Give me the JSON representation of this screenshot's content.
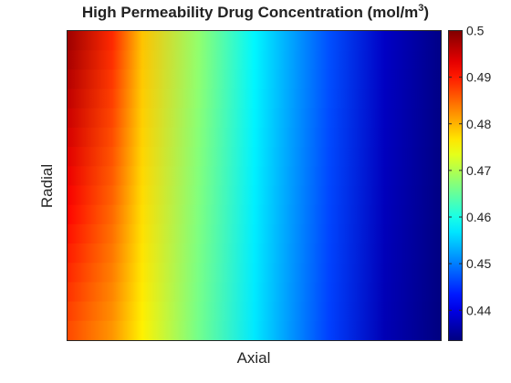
{
  "chart_data": {
    "type": "heatmap",
    "title": "High Permeability Drug Concentration (mol/m",
    "title_superscript": "3",
    "title_suffix": ")",
    "xlabel": "Axial",
    "ylabel": "Radial",
    "x_ticks": [],
    "y_ticks": [],
    "colormap": "jet",
    "clim": [
      0.4335,
      0.5
    ],
    "colorbar": {
      "ticks": [
        0.44,
        0.45,
        0.46,
        0.47,
        0.48,
        0.49,
        0.5
      ],
      "tick_labels": [
        "0.44",
        "0.45",
        "0.46",
        "0.47",
        "0.48",
        "0.49",
        "0.5"
      ]
    },
    "axial_profile": {
      "axial_fraction": [
        0.0,
        0.12,
        0.2,
        0.35,
        0.5,
        0.7,
        0.85,
        1.0
      ],
      "concentration_at_wall_top": [
        0.498,
        0.489,
        0.479,
        0.468,
        0.458,
        0.447,
        0.438,
        0.434
      ],
      "concentration_at_bottom": [
        0.487,
        0.482,
        0.476,
        0.466,
        0.457,
        0.446,
        0.437,
        0.4335
      ]
    },
    "radial_bands": 16
  }
}
